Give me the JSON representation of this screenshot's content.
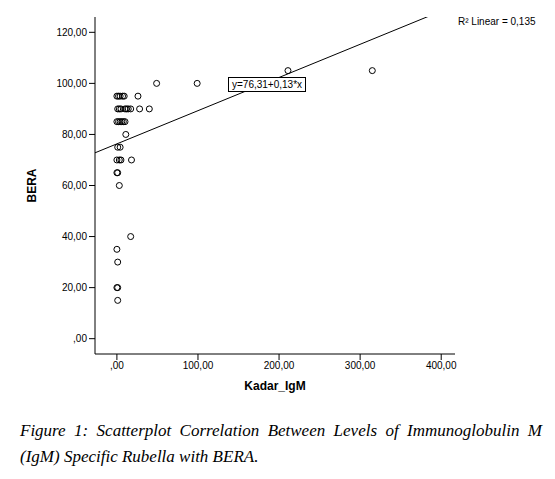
{
  "chart_data": {
    "type": "scatter",
    "x_label": "Kadar_IgM",
    "y_label": "BERA",
    "x": [
      0,
      2,
      4,
      7,
      9,
      26,
      1,
      3,
      5,
      10,
      12,
      14,
      17,
      28,
      40,
      0,
      2,
      4,
      6,
      8,
      10,
      11,
      1,
      4,
      0,
      3,
      5,
      18,
      0,
      1,
      3,
      17,
      0,
      1,
      0,
      1,
      1,
      49,
      99,
      211,
      315
    ],
    "values": [
      95,
      95,
      95,
      95,
      95,
      95,
      90,
      90,
      90,
      90,
      90,
      90,
      90,
      90,
      90,
      85,
      85,
      85,
      85,
      85,
      85,
      80,
      75,
      75,
      70,
      70,
      70,
      70,
      65,
      65,
      60,
      40,
      35,
      30,
      20,
      20,
      15,
      100,
      100,
      105,
      105
    ],
    "color": "#000000",
    "marker": "open_circle",
    "xlim": [
      -27,
      417
    ],
    "ylim": [
      -6,
      126
    ],
    "xticks": [
      {
        "value": 0,
        "label": ",00"
      },
      {
        "value": 100,
        "label": "100,00"
      },
      {
        "value": 200,
        "label": "200,00"
      },
      {
        "value": 300,
        "label": "300,00"
      },
      {
        "value": 400,
        "label": "400,00"
      }
    ],
    "yticks": [
      {
        "value": 0,
        "label": ",00"
      },
      {
        "value": 20,
        "label": "20,00"
      },
      {
        "value": 40,
        "label": "40,00"
      },
      {
        "value": 60,
        "label": "60,00"
      },
      {
        "value": 80,
        "label": "80,00"
      },
      {
        "value": 100,
        "label": "100,00"
      },
      {
        "value": 120,
        "label": "120,00"
      }
    ],
    "grid": false,
    "fit": {
      "intercept": 76.31,
      "slope": 0.13,
      "label": "y=76,31+0,13*x"
    },
    "annotations": [
      "R² Linear = 0,135"
    ],
    "caption": "Figure 1: Scatterplot Correlation Between Levels of Immunoglobulin M (IgM) Specific Rubella with BERA."
  }
}
